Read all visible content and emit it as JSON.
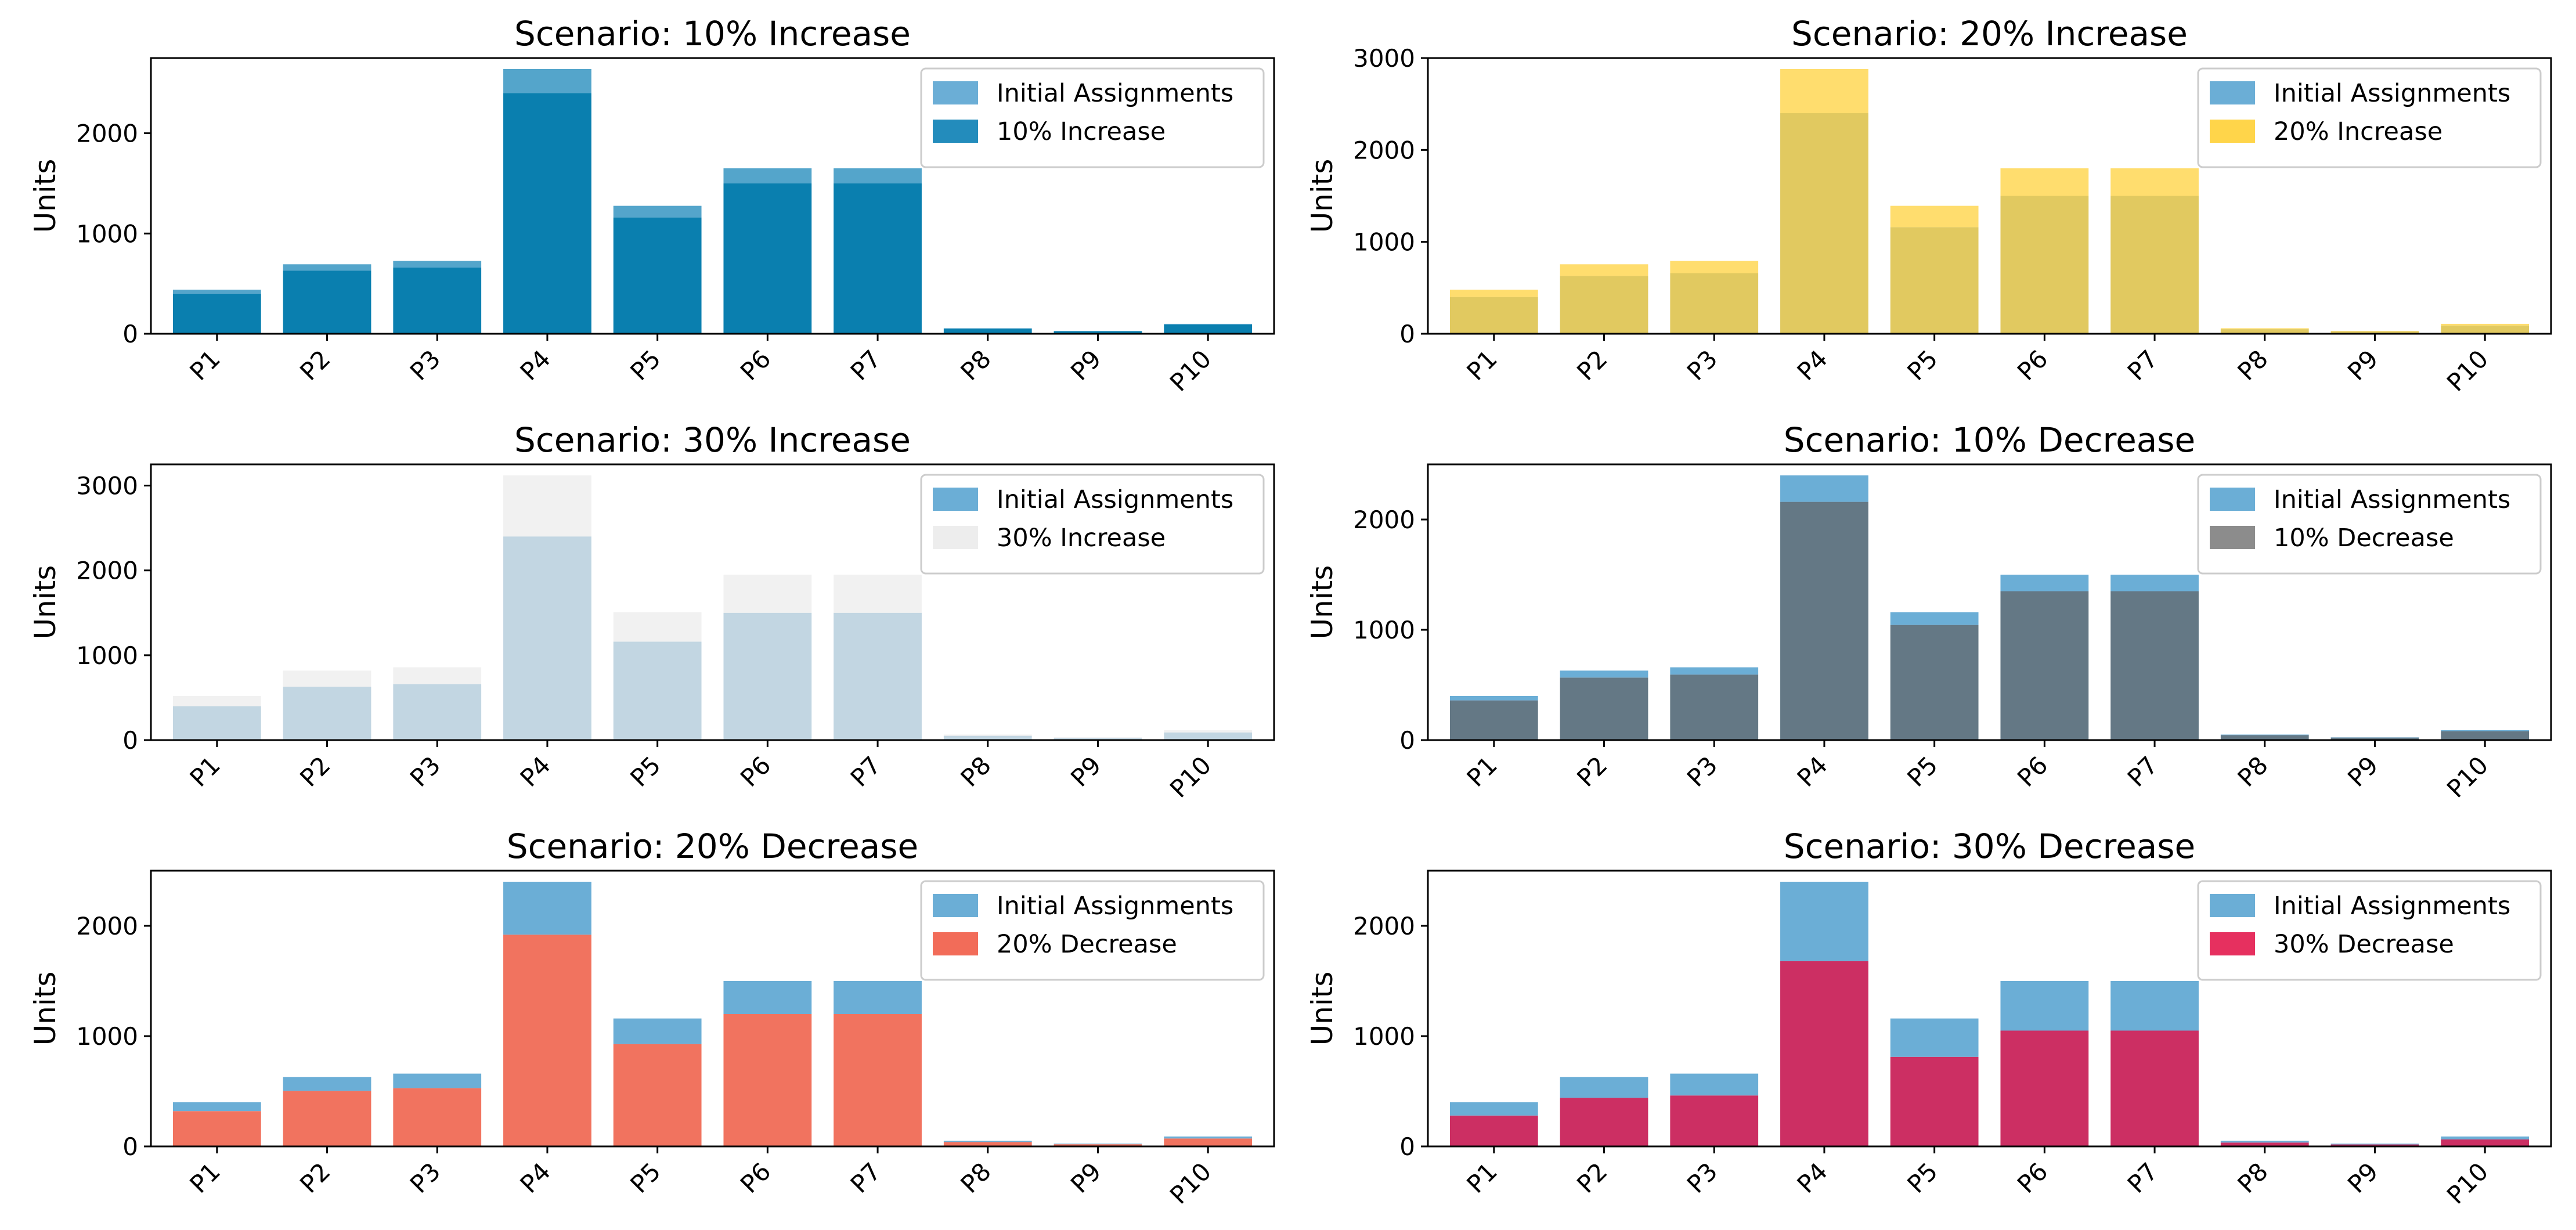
{
  "figure": {
    "colors": {
      "initial": "#6baed6"
    }
  },
  "chart_data": [
    {
      "type": "bar",
      "title": "Scenario: 10% Increase",
      "xlabel": "",
      "ylabel": "Units",
      "categories": [
        "P1",
        "P2",
        "P3",
        "P4",
        "P5",
        "P6",
        "P7",
        "P8",
        "P9",
        "P10"
      ],
      "ylim": [
        0,
        2750
      ],
      "yticks": [
        "0",
        "1000",
        "2000"
      ],
      "ytick_values": [
        0,
        1000,
        2000
      ],
      "legend_position": "top-right",
      "series": [
        {
          "name": "Initial Assignments",
          "values": [
            400,
            630,
            660,
            2400,
            1160,
            1500,
            1500,
            50,
            25,
            90
          ],
          "color": "#6baed6",
          "opacity": 1.0
        },
        {
          "name": "10% Increase",
          "values": [
            440,
            693,
            726,
            2640,
            1276,
            1650,
            1650,
            55,
            28,
            99
          ],
          "color": "#0b7fb5",
          "opacity": 0.7
        }
      ],
      "overlap_color": "#0a7faf"
    },
    {
      "type": "bar",
      "title": "Scenario: 20% Increase",
      "xlabel": "",
      "ylabel": "Units",
      "categories": [
        "P1",
        "P2",
        "P3",
        "P4",
        "P5",
        "P6",
        "P7",
        "P8",
        "P9",
        "P10"
      ],
      "ylim": [
        0,
        3000
      ],
      "yticks": [
        "0",
        "1000",
        "2000",
        "3000"
      ],
      "ytick_values": [
        0,
        1000,
        2000,
        3000
      ],
      "legend_position": "top-right",
      "series": [
        {
          "name": "Initial Assignments",
          "values": [
            400,
            630,
            660,
            2400,
            1160,
            1500,
            1500,
            50,
            25,
            90
          ],
          "color": "#6baed6",
          "opacity": 1.0
        },
        {
          "name": "20% Increase",
          "values": [
            480,
            756,
            792,
            2880,
            1392,
            1800,
            1800,
            60,
            30,
            108
          ],
          "color": "#ffd54a",
          "opacity": 0.8
        }
      ],
      "overlap_color": "#e1c960"
    },
    {
      "type": "bar",
      "title": "Scenario: 30% Increase",
      "xlabel": "",
      "ylabel": "Units",
      "categories": [
        "P1",
        "P2",
        "P3",
        "P4",
        "P5",
        "P6",
        "P7",
        "P8",
        "P9",
        "P10"
      ],
      "ylim": [
        0,
        3250
      ],
      "yticks": [
        "0",
        "1000",
        "2000",
        "3000"
      ],
      "ytick_values": [
        0,
        1000,
        2000,
        3000
      ],
      "legend_position": "top-right",
      "series": [
        {
          "name": "Initial Assignments",
          "values": [
            400,
            630,
            660,
            2400,
            1160,
            1500,
            1500,
            50,
            25,
            90
          ],
          "color": "#6baed6",
          "opacity": 1.0
        },
        {
          "name": "30% Increase",
          "values": [
            520,
            819,
            858,
            3120,
            1508,
            1950,
            1950,
            65,
            33,
            117
          ],
          "color": "#e8e8e8",
          "opacity": 0.6
        }
      ],
      "overlap_color": "#c2d6e2"
    },
    {
      "type": "bar",
      "title": "Scenario: 10% Decrease",
      "xlabel": "",
      "ylabel": "Units",
      "categories": [
        "P1",
        "P2",
        "P3",
        "P4",
        "P5",
        "P6",
        "P7",
        "P8",
        "P9",
        "P10"
      ],
      "ylim": [
        0,
        2500
      ],
      "yticks": [
        "0",
        "1000",
        "2000"
      ],
      "ytick_values": [
        0,
        1000,
        2000
      ],
      "legend_position": "top-right",
      "series": [
        {
          "name": "Initial Assignments",
          "values": [
            400,
            630,
            660,
            2400,
            1160,
            1500,
            1500,
            50,
            25,
            90
          ],
          "color": "#6baed6",
          "opacity": 1.0
        },
        {
          "name": "10% Decrease",
          "values": [
            360,
            567,
            594,
            2160,
            1044,
            1350,
            1350,
            45,
            23,
            81
          ],
          "color": "#8c8c8c",
          "opacity": 1.0
        }
      ],
      "overlap_color": "#647885"
    },
    {
      "type": "bar",
      "title": "Scenario: 20% Decrease",
      "xlabel": "",
      "ylabel": "Units",
      "categories": [
        "P1",
        "P2",
        "P3",
        "P4",
        "P5",
        "P6",
        "P7",
        "P8",
        "P9",
        "P10"
      ],
      "ylim": [
        0,
        2500
      ],
      "yticks": [
        "0",
        "1000",
        "2000"
      ],
      "ytick_values": [
        0,
        1000,
        2000
      ],
      "legend_position": "top-right",
      "series": [
        {
          "name": "Initial Assignments",
          "values": [
            400,
            630,
            660,
            2400,
            1160,
            1500,
            1500,
            50,
            25,
            90
          ],
          "color": "#6baed6",
          "opacity": 1.0
        },
        {
          "name": "20% Decrease",
          "values": [
            320,
            504,
            528,
            1920,
            928,
            1200,
            1200,
            40,
            20,
            72
          ],
          "color": "#f26c59",
          "opacity": 1.0
        }
      ],
      "overlap_color": "#f1735f"
    },
    {
      "type": "bar",
      "title": "Scenario: 30% Decrease",
      "xlabel": "",
      "ylabel": "Units",
      "categories": [
        "P1",
        "P2",
        "P3",
        "P4",
        "P5",
        "P6",
        "P7",
        "P8",
        "P9",
        "P10"
      ],
      "ylim": [
        0,
        2500
      ],
      "yticks": [
        "0",
        "1000",
        "2000"
      ],
      "ytick_values": [
        0,
        1000,
        2000
      ],
      "legend_position": "top-right",
      "series": [
        {
          "name": "Initial Assignments",
          "values": [
            400,
            630,
            660,
            2400,
            1160,
            1500,
            1500,
            50,
            25,
            90
          ],
          "color": "#6baed6",
          "opacity": 1.0
        },
        {
          "name": "30% Decrease",
          "values": [
            280,
            441,
            462,
            1680,
            812,
            1050,
            1050,
            35,
            18,
            63
          ],
          "color": "#e6305f",
          "opacity": 1.0
        }
      ],
      "overlap_color": "#cc2f63"
    }
  ]
}
